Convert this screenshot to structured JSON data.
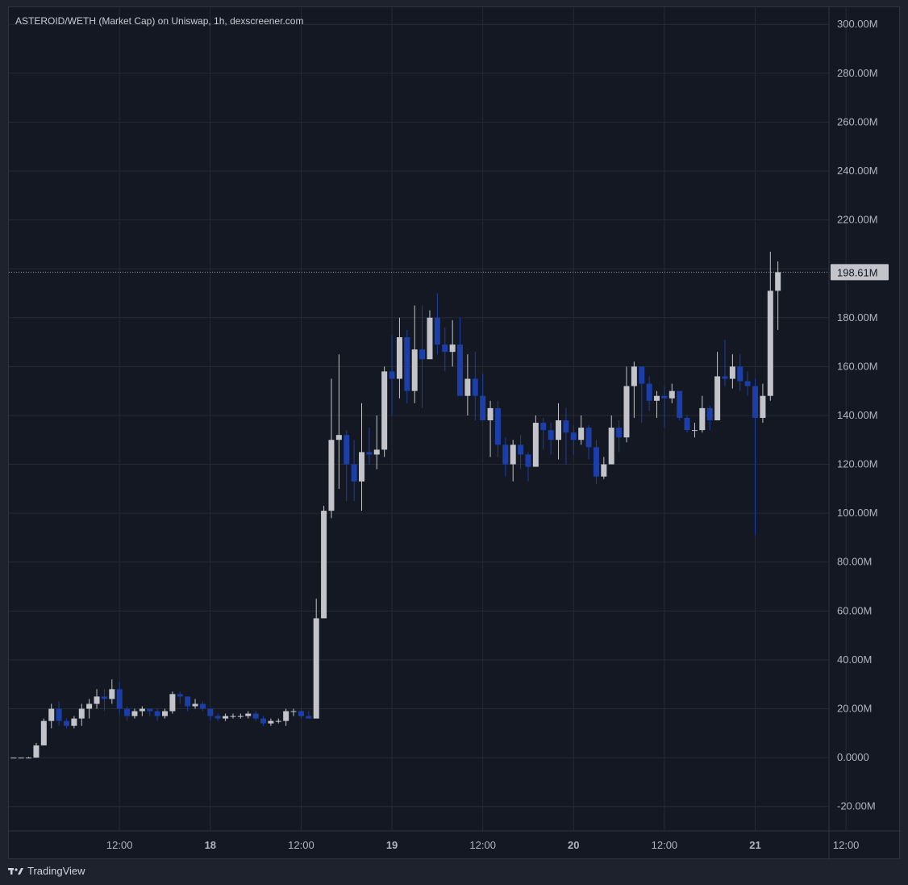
{
  "title": "ASTEROID/WETH (Market Cap) on Uniswap, 1h, dexscreener.com",
  "branding": "TradingView",
  "colors": {
    "background": "#141823",
    "grid": "#262a35",
    "up": "#c2c4c9",
    "down": "#1b3ea8",
    "text": "#b2b5be",
    "price_tag_bg": "#c2c4c9",
    "price_tag_text": "#141823"
  },
  "chart_data": {
    "type": "candlestick",
    "title": "ASTEROID/WETH (Market Cap) on Uniswap, 1h, dexscreener.com",
    "ylim": [
      -30,
      307
    ],
    "y_ticks": [
      -20,
      0,
      20,
      40,
      60,
      80,
      100,
      120,
      140,
      160,
      180,
      200,
      220,
      240,
      260,
      280,
      300
    ],
    "y_tick_labels": [
      "-20.00M",
      "0.0000",
      "20.00M",
      "40.00M",
      "60.00M",
      "80.00M",
      "100.00M",
      "120.00M",
      "140.00M",
      "160.00M",
      "180.00M",
      "",
      "220.00M",
      "240.00M",
      "260.00M",
      "280.00M",
      "300.00M"
    ],
    "x_ticks": [
      {
        "pos": 14,
        "label": "12:00",
        "bold": false
      },
      {
        "pos": 26,
        "label": "18",
        "bold": true
      },
      {
        "pos": 38,
        "label": "12:00",
        "bold": false
      },
      {
        "pos": 50,
        "label": "19",
        "bold": true
      },
      {
        "pos": 62,
        "label": "12:00",
        "bold": false
      },
      {
        "pos": 74,
        "label": "20",
        "bold": true
      },
      {
        "pos": 86,
        "label": "12:00",
        "bold": false
      },
      {
        "pos": 98,
        "label": "21",
        "bold": true
      },
      {
        "pos": 110,
        "label": "12:00",
        "bold": false
      }
    ],
    "last_price": 198.61,
    "last_price_label": "198.61M",
    "candles": [
      [
        0,
        0,
        0,
        0
      ],
      [
        0,
        0,
        0,
        0
      ],
      [
        0,
        0,
        0.3,
        0
      ],
      [
        0,
        5,
        6,
        0
      ],
      [
        5,
        15,
        16,
        5
      ],
      [
        15,
        20,
        22,
        12
      ],
      [
        20,
        15,
        23,
        13
      ],
      [
        15,
        13,
        16,
        12
      ],
      [
        13,
        16,
        17,
        12
      ],
      [
        16,
        20,
        22,
        13
      ],
      [
        20,
        22,
        24,
        16
      ],
      [
        22,
        25,
        28,
        20
      ],
      [
        25,
        24,
        28,
        19
      ],
      [
        24,
        28,
        32,
        22
      ],
      [
        28,
        20,
        31,
        18
      ],
      [
        20,
        17,
        21,
        15
      ],
      [
        17,
        19,
        20,
        16
      ],
      [
        19,
        20,
        21,
        17
      ],
      [
        20,
        19,
        20,
        17
      ],
      [
        19,
        17,
        20,
        15
      ],
      [
        17,
        19,
        20,
        16
      ],
      [
        19,
        26,
        27,
        18
      ],
      [
        26,
        25,
        27,
        22
      ],
      [
        25,
        21,
        25,
        19
      ],
      [
        21,
        22,
        24,
        20
      ],
      [
        22,
        20,
        23,
        19
      ],
      [
        20,
        17,
        20,
        15
      ],
      [
        17,
        16,
        18,
        15
      ],
      [
        16,
        17,
        18,
        15
      ],
      [
        17,
        17,
        18,
        16
      ],
      [
        17,
        17,
        18,
        16
      ],
      [
        17,
        18,
        19,
        16
      ],
      [
        18,
        16,
        19,
        15
      ],
      [
        16,
        14,
        17,
        13
      ],
      [
        14,
        15,
        16,
        13
      ],
      [
        15,
        15,
        16,
        14
      ],
      [
        15,
        19,
        20,
        13
      ],
      [
        19,
        19,
        20,
        17
      ],
      [
        19,
        17,
        20,
        16
      ],
      [
        17,
        16,
        19,
        16
      ],
      [
        16,
        57,
        65,
        50
      ],
      [
        57,
        101,
        103,
        97
      ],
      [
        101,
        130,
        155,
        98
      ],
      [
        130,
        132,
        165,
        110
      ],
      [
        132,
        120,
        134,
        105
      ],
      [
        120,
        113,
        130,
        105
      ],
      [
        113,
        125,
        145,
        101
      ],
      [
        125,
        124,
        135,
        120
      ],
      [
        124,
        126,
        140,
        118
      ],
      [
        126,
        158,
        160,
        123
      ],
      [
        158,
        155,
        173,
        140
      ],
      [
        155,
        172,
        180,
        147
      ],
      [
        172,
        150,
        175,
        145
      ],
      [
        150,
        167,
        185,
        145
      ],
      [
        167,
        163,
        185,
        143
      ],
      [
        163,
        180,
        183,
        165
      ],
      [
        180,
        169,
        190,
        165
      ],
      [
        169,
        166,
        176,
        158
      ],
      [
        166,
        169,
        179,
        160
      ],
      [
        169,
        148,
        180,
        148
      ],
      [
        148,
        155,
        165,
        140
      ],
      [
        155,
        148,
        166,
        138
      ],
      [
        148,
        138,
        157,
        140
      ],
      [
        138,
        143,
        146,
        123
      ],
      [
        143,
        128,
        146,
        123
      ],
      [
        128,
        120,
        131,
        115
      ],
      [
        120,
        128,
        130,
        113
      ],
      [
        128,
        124,
        132,
        118
      ],
      [
        124,
        119,
        125,
        113
      ],
      [
        119,
        137,
        140,
        119
      ],
      [
        137,
        134,
        139,
        126
      ],
      [
        134,
        130,
        137,
        124
      ],
      [
        130,
        138,
        145,
        122
      ],
      [
        138,
        133,
        143,
        120
      ],
      [
        133,
        130,
        136,
        124
      ],
      [
        130,
        135,
        140,
        128
      ],
      [
        135,
        127,
        136,
        122
      ],
      [
        127,
        115,
        130,
        112
      ],
      [
        115,
        120,
        123,
        114
      ],
      [
        120,
        135,
        140,
        120
      ],
      [
        135,
        131,
        138,
        125
      ],
      [
        131,
        152,
        160,
        129
      ],
      [
        152,
        160,
        162,
        139
      ],
      [
        160,
        153,
        160,
        137
      ],
      [
        153,
        146,
        156,
        142
      ],
      [
        146,
        148,
        150,
        139
      ],
      [
        148,
        147,
        152,
        135
      ],
      [
        147,
        150,
        153,
        145
      ],
      [
        150,
        139,
        150,
        138
      ],
      [
        139,
        134,
        140,
        133
      ],
      [
        134,
        134,
        137,
        131
      ],
      [
        134,
        143,
        148,
        133
      ],
      [
        143,
        138,
        144,
        134
      ],
      [
        138,
        156,
        166,
        138
      ],
      [
        156,
        155,
        171,
        152
      ],
      [
        155,
        160,
        165,
        151
      ],
      [
        160,
        154,
        165,
        150
      ],
      [
        154,
        152,
        158,
        148
      ],
      [
        152,
        139,
        155,
        91
      ],
      [
        139,
        148,
        153,
        137
      ],
      [
        148,
        191,
        207,
        146
      ],
      [
        191,
        198.6,
        203,
        175
      ]
    ]
  }
}
